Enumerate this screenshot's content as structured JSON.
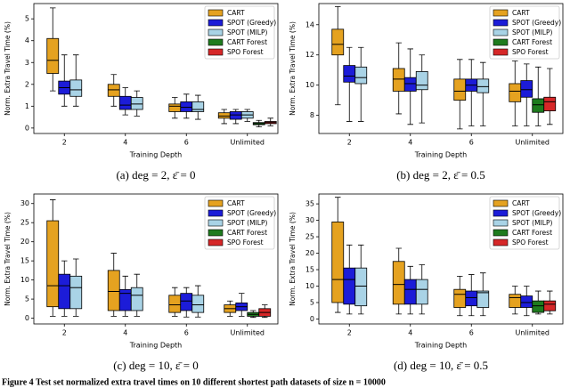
{
  "chart_data": [
    {
      "type": "box",
      "subcaption": "(a) deg = 2, ε̄ = 0",
      "ylabel": "Norm. Extra Travel Time (%)",
      "xlabel": "Training Depth",
      "categories": [
        "2",
        "4",
        "6",
        "Unlimited"
      ],
      "ylim": [
        -0.25,
        5.7
      ],
      "yticks": [
        0,
        1,
        2,
        3,
        4,
        5
      ],
      "legend": "upper right",
      "series": [
        {
          "name": "CART",
          "color": "#e5a220",
          "values": [
            {
              "min": 1.7,
              "q1": 2.5,
              "median": 3.1,
              "q3": 4.1,
              "max": 5.5
            },
            {
              "min": 1.0,
              "q1": 1.45,
              "median": 1.75,
              "q3": 2.0,
              "max": 2.45
            },
            {
              "min": 0.45,
              "q1": 0.75,
              "median": 1.0,
              "q3": 1.1,
              "max": 1.4
            },
            {
              "min": 0.2,
              "q1": 0.45,
              "median": 0.55,
              "q3": 0.7,
              "max": 0.85
            }
          ]
        },
        {
          "name": "SPOT (Greedy)",
          "color": "#1c1cd8",
          "values": [
            {
              "min": 1.0,
              "q1": 1.55,
              "median": 1.85,
              "q3": 2.15,
              "max": 3.35
            },
            {
              "min": 0.6,
              "q1": 0.85,
              "median": 1.05,
              "q3": 1.45,
              "max": 1.85
            },
            {
              "min": 0.45,
              "q1": 0.75,
              "median": 0.95,
              "q3": 1.2,
              "max": 1.55
            },
            {
              "min": 0.2,
              "q1": 0.4,
              "median": 0.6,
              "q3": 0.75,
              "max": 0.85
            }
          ]
        },
        {
          "name": "SPOT (MILP)",
          "color": "#a9d3e6",
          "values": [
            {
              "min": 1.0,
              "q1": 1.45,
              "median": 1.75,
              "q3": 2.2,
              "max": 3.35
            },
            {
              "min": 0.55,
              "q1": 0.85,
              "median": 1.1,
              "q3": 1.4,
              "max": 1.7
            },
            {
              "min": 0.4,
              "q1": 0.75,
              "median": 0.85,
              "q3": 1.2,
              "max": 1.5
            },
            {
              "min": 0.3,
              "q1": 0.45,
              "median": 0.6,
              "q3": 0.75,
              "max": 0.85
            }
          ]
        },
        {
          "name": "CART Forest",
          "color": "#1e7b1e",
          "values": [
            null,
            null,
            null,
            {
              "min": 0.05,
              "q1": 0.15,
              "median": 0.2,
              "q3": 0.25,
              "max": 0.35
            }
          ]
        },
        {
          "name": "SPO Forest",
          "color": "#d62728",
          "values": [
            null,
            null,
            null,
            {
              "min": 0.1,
              "q1": 0.2,
              "median": 0.25,
              "q3": 0.3,
              "max": 0.45
            }
          ]
        }
      ]
    },
    {
      "type": "box",
      "subcaption": "(b) deg = 2, ε̄ = 0.5",
      "ylabel": "Norm. Extra Travel Time (%)",
      "xlabel": "Training Depth",
      "categories": [
        "2",
        "4",
        "6",
        "Unlimited"
      ],
      "ylim": [
        6.8,
        15.4
      ],
      "yticks": [
        8,
        10,
        12,
        14
      ],
      "legend": "upper right",
      "series": [
        {
          "name": "CART",
          "color": "#e5a220",
          "values": [
            {
              "min": 8.7,
              "q1": 12.0,
              "median": 12.7,
              "q3": 13.7,
              "max": 15.2
            },
            {
              "min": 8.1,
              "q1": 9.6,
              "median": 10.4,
              "q3": 11.1,
              "max": 12.8
            },
            {
              "min": 7.1,
              "q1": 9.0,
              "median": 9.6,
              "q3": 10.4,
              "max": 11.7
            },
            {
              "min": 7.3,
              "q1": 8.9,
              "median": 9.6,
              "q3": 10.1,
              "max": 11.6
            }
          ]
        },
        {
          "name": "SPOT (Greedy)",
          "color": "#1c1cd8",
          "values": [
            {
              "min": 7.6,
              "q1": 10.2,
              "median": 10.6,
              "q3": 11.3,
              "max": 12.5
            },
            {
              "min": 7.4,
              "q1": 9.6,
              "median": 10.1,
              "q3": 10.5,
              "max": 12.4
            },
            {
              "min": 7.3,
              "q1": 9.6,
              "median": 10.0,
              "q3": 10.4,
              "max": 11.7
            },
            {
              "min": 7.3,
              "q1": 9.2,
              "median": 9.7,
              "q3": 10.3,
              "max": 11.4
            }
          ]
        },
        {
          "name": "SPOT (MILP)",
          "color": "#a9d3e6",
          "values": [
            {
              "min": 7.6,
              "q1": 10.1,
              "median": 10.5,
              "q3": 11.2,
              "max": 12.5
            },
            {
              "min": 7.5,
              "q1": 9.7,
              "median": 10.0,
              "q3": 10.9,
              "max": 12.0
            },
            {
              "min": 7.3,
              "q1": 9.5,
              "median": 9.9,
              "q3": 10.4,
              "max": 11.5
            },
            null
          ]
        },
        {
          "name": "CART Forest",
          "color": "#1e7b1e",
          "values": [
            null,
            null,
            null,
            {
              "min": 7.3,
              "q1": 8.2,
              "median": 8.7,
              "q3": 9.1,
              "max": 11.2
            }
          ]
        },
        {
          "name": "SPO Forest",
          "color": "#d62728",
          "values": [
            null,
            null,
            null,
            {
              "min": 7.4,
              "q1": 8.3,
              "median": 8.9,
              "q3": 9.2,
              "max": 11.1
            }
          ]
        }
      ]
    },
    {
      "type": "box",
      "subcaption": "(c) deg = 10, ε̄ = 0",
      "ylabel": "Norm. Extra Travel Time (%)",
      "xlabel": "Training Depth",
      "categories": [
        "2",
        "4",
        "6",
        "Unlimited"
      ],
      "ylim": [
        -1.5,
        32.5
      ],
      "yticks": [
        0,
        5,
        10,
        15,
        20,
        25,
        30
      ],
      "legend": "upper right",
      "series": [
        {
          "name": "CART",
          "color": "#e5a220",
          "values": [
            {
              "min": 0.5,
              "q1": 3,
              "median": 8.5,
              "q3": 25.5,
              "max": 31
            },
            {
              "min": 0.5,
              "q1": 2,
              "median": 7,
              "q3": 12.5,
              "max": 17
            },
            {
              "min": 0.5,
              "q1": 1.5,
              "median": 3.5,
              "q3": 6,
              "max": 8
            },
            {
              "min": 0.5,
              "q1": 1.5,
              "median": 2.5,
              "q3": 3.5,
              "max": 4.5
            }
          ]
        },
        {
          "name": "SPOT (Greedy)",
          "color": "#1c1cd8",
          "values": [
            {
              "min": 0.5,
              "q1": 2.5,
              "median": 8.5,
              "q3": 11.5,
              "max": 15
            },
            {
              "min": 0.5,
              "q1": 2,
              "median": 6.5,
              "q3": 7.5,
              "max": 11
            },
            {
              "min": 0.3,
              "q1": 2,
              "median": 4.5,
              "q3": 6.5,
              "max": 8
            },
            {
              "min": 0.5,
              "q1": 2,
              "median": 3,
              "q3": 4,
              "max": 6.5
            }
          ]
        },
        {
          "name": "SPOT (MILP)",
          "color": "#a9d3e6",
          "values": [
            {
              "min": 0.5,
              "q1": 2.5,
              "median": 8,
              "q3": 11,
              "max": 15.5
            },
            {
              "min": 0.5,
              "q1": 2,
              "median": 6,
              "q3": 8,
              "max": 11.5
            },
            {
              "min": 0.3,
              "q1": 1.5,
              "median": 3.5,
              "q3": 6,
              "max": 8.5
            },
            null
          ]
        },
        {
          "name": "CART Forest",
          "color": "#1e7b1e",
          "values": [
            null,
            null,
            null,
            {
              "min": 0.2,
              "q1": 0.5,
              "median": 1,
              "q3": 1.5,
              "max": 2
            }
          ]
        },
        {
          "name": "SPO Forest",
          "color": "#d62728",
          "values": [
            null,
            null,
            null,
            {
              "min": 0.2,
              "q1": 0.5,
              "median": 1.5,
              "q3": 2.5,
              "max": 3.5
            }
          ]
        }
      ]
    },
    {
      "type": "box",
      "subcaption": "(d) deg = 10, ε̄ = 0.5",
      "ylabel": "Norm. Extra Travel Time (%)",
      "xlabel": "Training Depth",
      "categories": [
        "2",
        "4",
        "6",
        "Unlimited"
      ],
      "ylim": [
        -1.5,
        38
      ],
      "yticks": [
        0,
        5,
        10,
        15,
        20,
        25,
        30,
        35
      ],
      "legend": "upper right",
      "series": [
        {
          "name": "CART",
          "color": "#e5a220",
          "values": [
            {
              "min": 2,
              "q1": 5,
              "median": 12,
              "q3": 29.5,
              "max": 37
            },
            {
              "min": 1.5,
              "q1": 4.5,
              "median": 10.5,
              "q3": 17.5,
              "max": 21.5
            },
            {
              "min": 1,
              "q1": 3.5,
              "median": 7.5,
              "q3": 9,
              "max": 13
            },
            {
              "min": 1.5,
              "q1": 3.5,
              "median": 6.5,
              "q3": 7.5,
              "max": 10
            }
          ]
        },
        {
          "name": "SPOT (Greedy)",
          "color": "#1c1cd8",
          "values": [
            {
              "min": 1.5,
              "q1": 4.5,
              "median": 12,
              "q3": 15.5,
              "max": 22.5
            },
            {
              "min": 1.5,
              "q1": 4.5,
              "median": 9,
              "q3": 12,
              "max": 16
            },
            {
              "min": 1,
              "q1": 4,
              "median": 6.5,
              "q3": 8.5,
              "max": 13.5
            },
            {
              "min": 1,
              "q1": 3.5,
              "median": 5,
              "q3": 7,
              "max": 10
            }
          ]
        },
        {
          "name": "SPOT (MILP)",
          "color": "#a9d3e6",
          "values": [
            {
              "min": 1.5,
              "q1": 4,
              "median": 10,
              "q3": 15.5,
              "max": 22.5
            },
            {
              "min": 1.5,
              "q1": 4.5,
              "median": 9,
              "q3": 12,
              "max": 16.5
            },
            {
              "min": 1,
              "q1": 3.5,
              "median": 8,
              "q3": 8.5,
              "max": 14
            },
            null
          ]
        },
        {
          "name": "CART Forest",
          "color": "#1e7b1e",
          "values": [
            null,
            null,
            null,
            {
              "min": 1.5,
              "q1": 2,
              "median": 4,
              "q3": 5.5,
              "max": 8.5
            }
          ]
        },
        {
          "name": "SPO Forest",
          "color": "#d62728",
          "values": [
            null,
            null,
            null,
            {
              "min": 1.5,
              "q1": 2.5,
              "median": 4.5,
              "q3": 5.5,
              "max": 8.5
            }
          ]
        }
      ]
    }
  ],
  "caption": "Figure 4    Test set normalized extra travel times on 10 different shortest path datasets of size n = 10000"
}
